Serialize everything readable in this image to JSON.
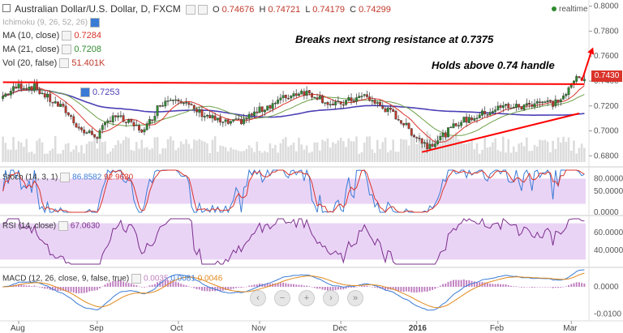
{
  "header": {
    "title": "Australian Dollar/U.S. Dollar, D, FXCM",
    "o_label": "O",
    "o": "0.74676",
    "h_label": "H",
    "h": "0.74721",
    "l_label": "L",
    "l": "0.74179",
    "c_label": "C",
    "c": "0.74299",
    "realtime": "realtime"
  },
  "indicators": {
    "ichimoku": "Ichimoku (9, 26, 52, 26)",
    "ma10": "MA (10, close)",
    "ma10_val": "0.7284",
    "ma21": "MA (21, close)",
    "ma21_val": "0.7208",
    "vol": "Vol (20, false)",
    "vol_val": "51.401K",
    "ma50_val": "0.7253"
  },
  "annotations": {
    "resistance": "Breaks next strong resistance at 0.7375",
    "handle": "Holds above 0.74 handle"
  },
  "price_tag": "0.7430",
  "panels": {
    "stoch": {
      "label": "Stoch (14, 3, 1)",
      "v1": "86.8582",
      "v2": "92.9630",
      "ticks": [
        "80.0000",
        "50.0000",
        "0.0000"
      ]
    },
    "rsi": {
      "label": "RSI (14, close)",
      "v1": "67.0630",
      "ticks": [
        "60.0000",
        "40.0000"
      ]
    },
    "macd": {
      "label": "MACD (12, 26, close, 9, false, true)",
      "v1": "0.0035",
      "v2": "0.0081",
      "v3": "0.0046",
      "ticks": [
        "0.0000",
        "-0.0100"
      ]
    }
  },
  "colors": {
    "up": "#2e8b2e",
    "down": "#c0392b",
    "ma10": "#d9342b",
    "ma21": "#6fa04a",
    "ma50": "#4b3fb5",
    "trend": "#ff0000",
    "stoch_k": "#3a7bd5",
    "stoch_d": "#d9342b",
    "rsi": "#7b2f8c",
    "macd_hist": "#c080c0",
    "band": "#ead4f6"
  },
  "chart_data": {
    "type": "candlestick",
    "title": "Australian Dollar/U.S. Dollar, D, FXCM",
    "x_ticks": [
      "Aug",
      "Sep",
      "Oct",
      "Nov",
      "Dec",
      "2016",
      "Feb",
      "Mar"
    ],
    "y_ticks": [
      0.68,
      0.7,
      0.72,
      0.74,
      0.76,
      0.78,
      0.8
    ],
    "ylim": [
      0.675,
      0.805
    ],
    "close_anchors": [
      [
        0,
        0.728
      ],
      [
        6,
        0.736
      ],
      [
        12,
        0.735
      ],
      [
        18,
        0.725
      ],
      [
        24,
        0.716
      ],
      [
        30,
        0.7
      ],
      [
        36,
        0.696
      ],
      [
        42,
        0.713
      ],
      [
        48,
        0.706
      ],
      [
        54,
        0.7
      ],
      [
        60,
        0.722
      ],
      [
        66,
        0.728
      ],
      [
        72,
        0.718
      ],
      [
        78,
        0.712
      ],
      [
        84,
        0.706
      ],
      [
        90,
        0.707
      ],
      [
        96,
        0.714
      ],
      [
        102,
        0.721
      ],
      [
        108,
        0.727
      ],
      [
        114,
        0.732
      ],
      [
        120,
        0.728
      ],
      [
        126,
        0.72
      ],
      [
        132,
        0.724
      ],
      [
        138,
        0.728
      ],
      [
        144,
        0.72
      ],
      [
        150,
        0.712
      ],
      [
        156,
        0.699
      ],
      [
        162,
        0.688
      ],
      [
        168,
        0.696
      ],
      [
        174,
        0.707
      ],
      [
        180,
        0.711
      ],
      [
        186,
        0.716
      ],
      [
        192,
        0.72
      ],
      [
        198,
        0.719
      ],
      [
        204,
        0.724
      ],
      [
        210,
        0.722
      ],
      [
        214,
        0.727
      ],
      [
        217,
        0.736
      ],
      [
        219,
        0.743
      ],
      [
        221,
        0.743
      ]
    ],
    "trendlines": [
      {
        "name": "resistance",
        "from": [
          0,
          0.739
        ],
        "to": [
          222,
          0.7375
        ]
      },
      {
        "name": "support",
        "from": [
          160,
          0.683
        ],
        "to": [
          220,
          0.714
        ]
      }
    ],
    "ranges": {
      "stoch": [
        0,
        100
      ],
      "rsi": [
        25,
        75
      ],
      "macd": [
        -0.012,
        0.006
      ]
    }
  }
}
